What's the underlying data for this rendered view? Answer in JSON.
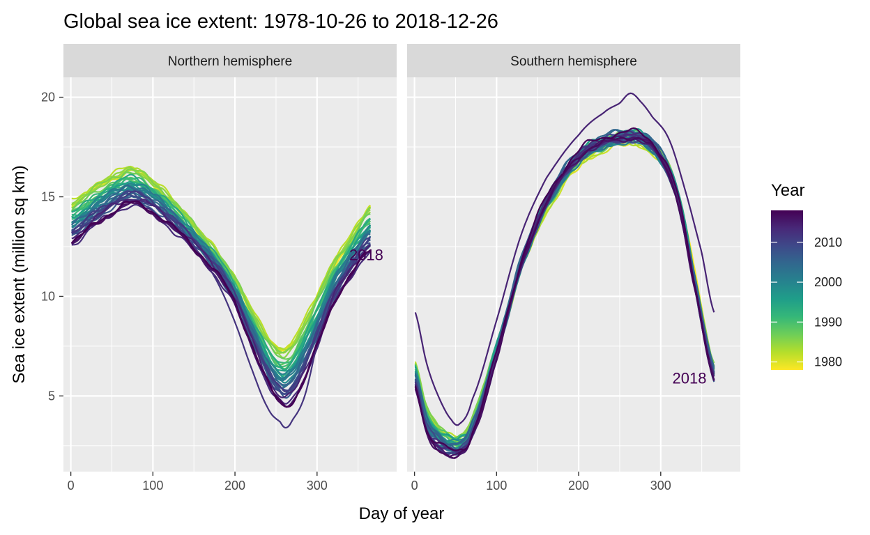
{
  "colors": {
    "panel_bg": "#ebebeb",
    "strip_bg": "#d9d9d9",
    "grid": "#ffffff",
    "viridis": [
      "#fde725",
      "#b5de2b",
      "#6ece58",
      "#35b779",
      "#1f9e89",
      "#26828e",
      "#31688e",
      "#3e4989",
      "#482878",
      "#440154"
    ]
  },
  "chart_data": {
    "type": "line",
    "title": "Global sea ice extent: 1978-10-26 to 2018-12-26",
    "xlabel": "Day of year",
    "ylabel": "Sea ice extent (million sq km)",
    "xlim": [
      -9,
      397
    ],
    "ylim": [
      1.2,
      21.0
    ],
    "x_ticks": [
      0,
      100,
      200,
      300
    ],
    "y_ticks": [
      5,
      10,
      15,
      20
    ],
    "x_tick_labels": [
      "0",
      "100",
      "200",
      "300"
    ],
    "y_tick_labels": [
      "5",
      "10",
      "15",
      "20"
    ],
    "legend": {
      "title": "Year",
      "range": [
        1978,
        2018
      ],
      "labels": [
        "1980",
        "1990",
        "2000",
        "2010"
      ],
      "label_values": [
        1980,
        1990,
        2000,
        2010
      ],
      "placement": "right"
    },
    "panels": [
      {
        "name": "Northern hemisphere",
        "end_label": "2018",
        "end_label_point": [
          360,
          12.1
        ],
        "oldest_profile": {
          "x": [
            0,
            30,
            60,
            75,
            100,
            130,
            160,
            180,
            200,
            220,
            240,
            255,
            265,
            280,
            300,
            320,
            340,
            365
          ],
          "y": [
            14.8,
            15.6,
            16.3,
            16.5,
            15.8,
            14.6,
            13.1,
            12.1,
            10.9,
            9.4,
            8.1,
            7.5,
            7.6,
            8.6,
            10.2,
            11.8,
            13.0,
            14.6
          ]
        },
        "newest_profile": {
          "x": [
            0,
            30,
            60,
            75,
            100,
            130,
            160,
            180,
            200,
            220,
            240,
            255,
            265,
            280,
            300,
            320,
            340,
            365
          ],
          "y": [
            12.6,
            13.6,
            14.4,
            14.6,
            14.2,
            13.2,
            12.0,
            11.0,
            9.6,
            7.6,
            5.6,
            4.6,
            4.5,
            5.4,
            7.4,
            9.6,
            11.0,
            12.2
          ]
        },
        "extremes": [
          {
            "year": 2012,
            "x": [
              0,
              30,
              60,
              100,
              130,
              160,
              180,
              200,
              220,
              240,
              255,
              262,
              270,
              285,
              300,
              320,
              340,
              365
            ],
            "y": [
              13.2,
              13.9,
              14.8,
              14.6,
              13.4,
              12.0,
              10.6,
              8.7,
              6.4,
              4.4,
              3.7,
              3.4,
              3.8,
              5.0,
              7.6,
              9.9,
              11.3,
              12.6
            ]
          }
        ]
      },
      {
        "name": "Southern hemisphere",
        "end_label": "2018",
        "end_label_point": [
          335,
          5.9
        ],
        "oldest_profile": {
          "x": [
            0,
            15,
            30,
            45,
            55,
            70,
            100,
            130,
            160,
            200,
            230,
            250,
            265,
            280,
            300,
            320,
            340,
            365
          ],
          "y": [
            6.8,
            4.4,
            3.3,
            2.9,
            3.0,
            3.8,
            7.4,
            11.5,
            14.4,
            16.7,
            17.5,
            17.8,
            17.9,
            17.7,
            16.9,
            15.2,
            11.3,
            6.3
          ]
        },
        "newest_profile": {
          "x": [
            0,
            15,
            30,
            45,
            55,
            70,
            100,
            130,
            160,
            200,
            230,
            250,
            265,
            280,
            300,
            320,
            340,
            365
          ],
          "y": [
            5.6,
            3.2,
            2.5,
            2.2,
            2.2,
            3.1,
            7.1,
            11.7,
            14.9,
            17.2,
            17.9,
            18.1,
            18.2,
            18.0,
            17.1,
            15.1,
            10.8,
            6.0
          ]
        },
        "extremes": [
          {
            "year": 2014,
            "x": [
              0,
              15,
              30,
              45,
              55,
              70,
              100,
              130,
              160,
              200,
              230,
              250,
              263,
              275,
              290,
              310,
              330,
              350,
              365
            ],
            "y": [
              9.3,
              6.6,
              4.9,
              3.8,
              3.6,
              4.8,
              8.8,
              13.1,
              15.9,
              18.1,
              19.2,
              19.7,
              20.2,
              19.8,
              19.0,
              17.9,
              15.3,
              12.2,
              9.2
            ]
          }
        ]
      }
    ]
  }
}
